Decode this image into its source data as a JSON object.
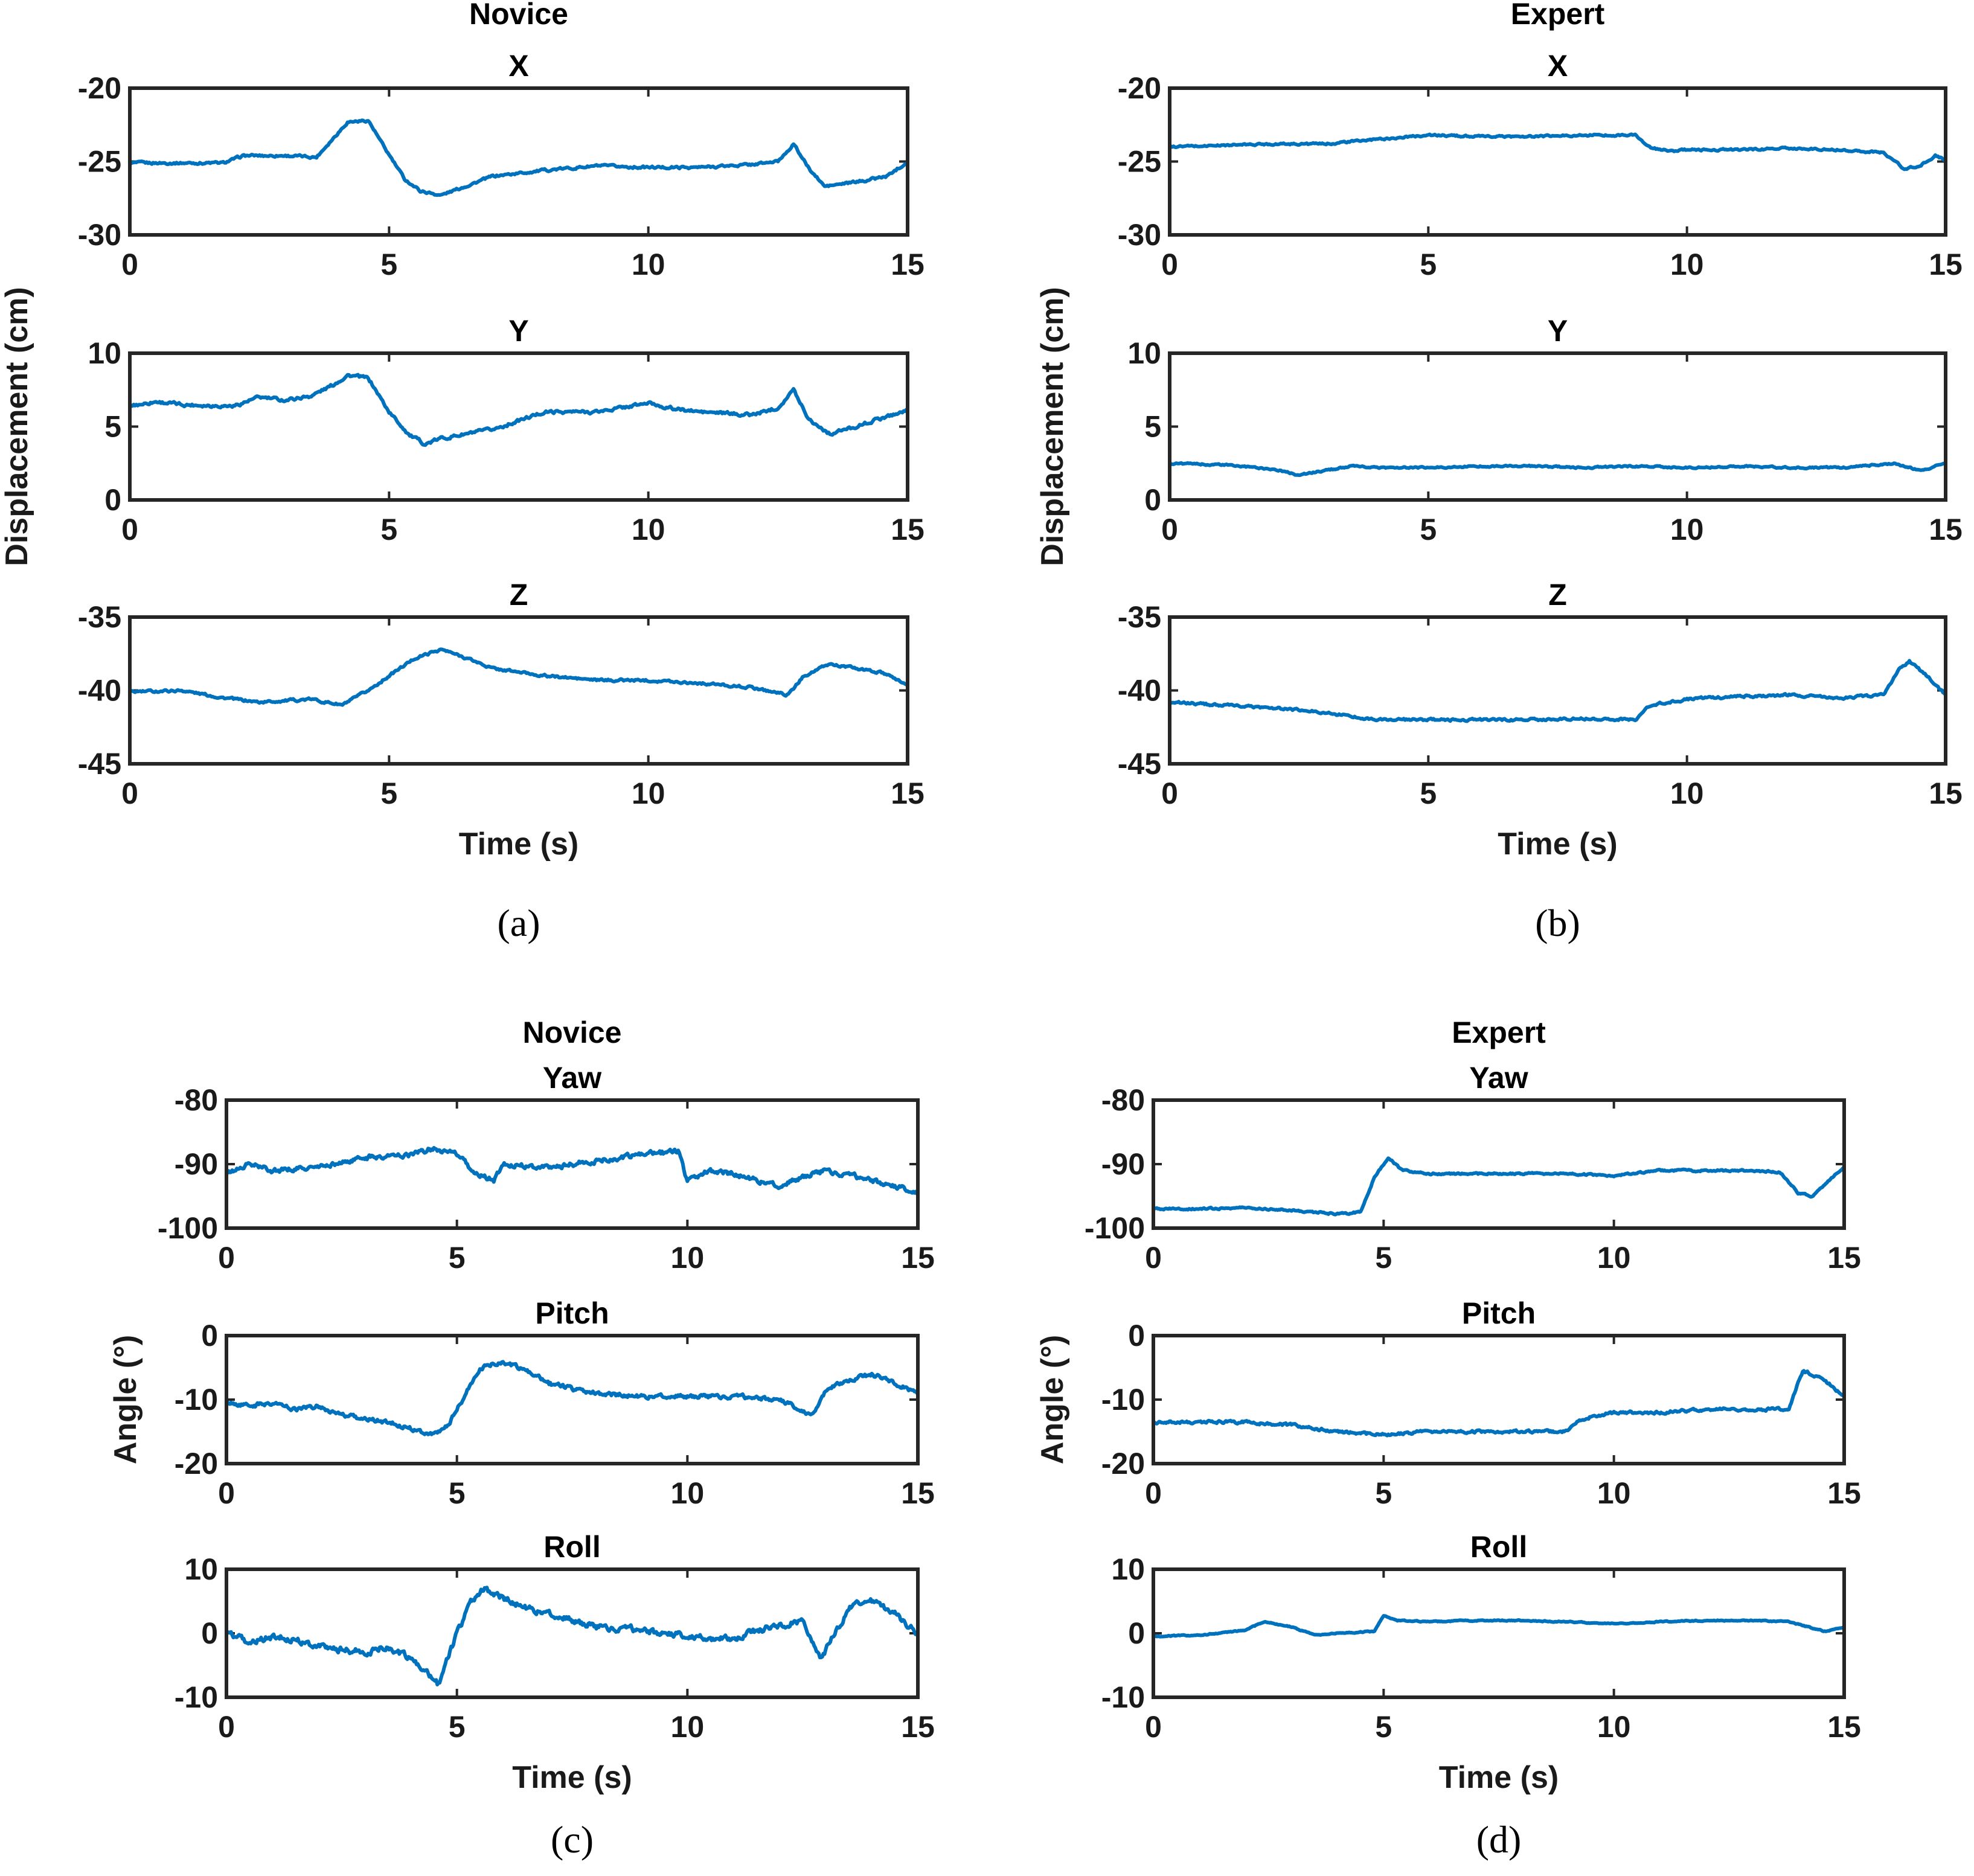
{
  "chart_data": [
    {
      "panel": "a",
      "type": "line",
      "column_title": "Novice",
      "caption": "(a)",
      "ylabel": "Displacement (cm)",
      "xlabel": "Time (s)",
      "subplots": [
        {
          "title": "X",
          "ylim": [
            -30,
            -20
          ],
          "yticks": [
            -20,
            -25,
            -30
          ],
          "xlim": [
            0,
            15
          ],
          "xticks": [
            0,
            5,
            10,
            15
          ],
          "series": [
            {
              "name": "X",
              "color": "#0072BD",
              "noise": 0.15,
              "x": [
                0,
                1,
                1.8,
                2.2,
                3,
                3.6,
                3.9,
                4.2,
                4.6,
                4.9,
                5.3,
                5.6,
                6,
                7,
                8,
                9,
                10,
                11,
                12,
                12.5,
                12.8,
                13.1,
                13.4,
                14,
                14.6,
                15
              ],
              "y": [
                -25.1,
                -25.1,
                -25.1,
                -24.6,
                -24.6,
                -24.7,
                -23.5,
                -22.3,
                -22.2,
                -24.0,
                -26.2,
                -27.0,
                -27.3,
                -26.0,
                -25.6,
                -25.3,
                -25.4,
                -25.4,
                -25.2,
                -25.0,
                -23.8,
                -25.5,
                -26.7,
                -26.4,
                -26.0,
                -25.0
              ]
            }
          ]
        },
        {
          "title": "Y",
          "ylim": [
            0,
            10
          ],
          "yticks": [
            10,
            5,
            0
          ],
          "xlim": [
            0,
            15
          ],
          "xticks": [
            0,
            5,
            10,
            15
          ],
          "series": [
            {
              "name": "Y",
              "color": "#0072BD",
              "noise": 0.2,
              "x": [
                0,
                0.5,
                1,
                2,
                2.5,
                3,
                3.5,
                3.9,
                4.2,
                4.6,
                5,
                5.4,
                5.7,
                6,
                7,
                8,
                9,
                10,
                10.5,
                11,
                12,
                12.5,
                12.8,
                13.1,
                13.5,
                14,
                14.6,
                15
              ],
              "y": [
                6.4,
                6.7,
                6.5,
                6.4,
                7.0,
                6.8,
                7.1,
                7.8,
                8.5,
                8.3,
                6.0,
                4.4,
                3.8,
                4.2,
                4.8,
                6.0,
                6.0,
                6.6,
                6.2,
                6.0,
                5.8,
                6.3,
                7.5,
                5.5,
                4.5,
                5.0,
                5.7,
                6.1
              ]
            }
          ]
        },
        {
          "title": "Z",
          "ylim": [
            -45,
            -35
          ],
          "yticks": [
            -35,
            -40,
            -45
          ],
          "xlim": [
            0,
            15
          ],
          "xticks": [
            0,
            5,
            10,
            15
          ],
          "series": [
            {
              "name": "Z",
              "color": "#0072BD",
              "noise": 0.15,
              "x": [
                0,
                1,
                1.8,
                2.5,
                3.5,
                4.1,
                4.6,
                5,
                5.5,
                6,
                6.5,
                7,
                8,
                9,
                10,
                11,
                12,
                12.7,
                13,
                13.5,
                14.5,
                15
              ],
              "y": [
                -40.1,
                -40.0,
                -40.5,
                -40.8,
                -40.6,
                -41.0,
                -40.0,
                -39.0,
                -37.8,
                -37.2,
                -37.8,
                -38.5,
                -39.0,
                -39.3,
                -39.3,
                -39.5,
                -39.8,
                -40.3,
                -39.0,
                -38.2,
                -38.8,
                -39.6
              ]
            }
          ]
        }
      ]
    },
    {
      "panel": "b",
      "type": "line",
      "column_title": "Expert",
      "caption": "(b)",
      "ylabel": "Displacement (cm)",
      "xlabel": "Time (s)",
      "subplots": [
        {
          "title": "X",
          "ylim": [
            -30,
            -20
          ],
          "yticks": [
            -20,
            -25,
            -30
          ],
          "xlim": [
            0,
            15
          ],
          "xticks": [
            0,
            5,
            10,
            15
          ],
          "series": [
            {
              "name": "X",
              "color": "#0072BD",
              "noise": 0.12,
              "x": [
                0,
                1,
                2,
                3,
                4,
                5,
                6,
                7,
                8,
                9,
                9.3,
                9.7,
                10,
                11,
                12,
                13,
                13.8,
                14.2,
                14.5,
                14.8,
                15
              ],
              "y": [
                -24.0,
                -23.9,
                -23.8,
                -23.8,
                -23.5,
                -23.2,
                -23.3,
                -23.3,
                -23.2,
                -23.2,
                -24.1,
                -24.3,
                -24.2,
                -24.2,
                -24.1,
                -24.2,
                -24.4,
                -25.5,
                -25.3,
                -24.6,
                -24.9
              ]
            }
          ]
        },
        {
          "title": "Y",
          "ylim": [
            0,
            10
          ],
          "yticks": [
            10,
            5,
            0
          ],
          "xlim": [
            0,
            15
          ],
          "xticks": [
            0,
            5,
            10,
            15
          ],
          "series": [
            {
              "name": "Y",
              "color": "#0072BD",
              "noise": 0.1,
              "x": [
                0,
                1,
                2,
                2.5,
                3,
                3.5,
                4,
                5,
                6,
                7,
                8,
                9,
                10,
                11,
                12,
                13,
                14,
                14.5,
                15
              ],
              "y": [
                2.5,
                2.4,
                2.1,
                1.7,
                2.0,
                2.3,
                2.2,
                2.2,
                2.3,
                2.3,
                2.2,
                2.3,
                2.2,
                2.3,
                2.2,
                2.2,
                2.5,
                2.0,
                2.5
              ]
            }
          ]
        },
        {
          "title": "Z",
          "ylim": [
            -45,
            -35
          ],
          "yticks": [
            -35,
            -40,
            -45
          ],
          "xlim": [
            0,
            15
          ],
          "xticks": [
            0,
            5,
            10,
            15
          ],
          "series": [
            {
              "name": "Z",
              "color": "#0072BD",
              "noise": 0.15,
              "x": [
                0,
                1,
                2,
                3,
                4,
                5,
                6,
                7,
                8,
                9,
                9.3,
                10,
                11,
                12,
                13,
                13.8,
                14.1,
                14.3,
                14.7,
                15
              ],
              "y": [
                -40.8,
                -41.0,
                -41.2,
                -41.5,
                -42.0,
                -42.0,
                -42.0,
                -42.0,
                -41.9,
                -42.0,
                -41.0,
                -40.6,
                -40.4,
                -40.3,
                -40.5,
                -40.3,
                -38.5,
                -38.0,
                -39.2,
                -40.3
              ]
            }
          ]
        }
      ]
    },
    {
      "panel": "c",
      "type": "line",
      "column_title": "Novice",
      "caption": "(c)",
      "ylabel": "Angle (°)",
      "xlabel": "Time (s)",
      "subplots": [
        {
          "title": "Yaw",
          "ylim": [
            -100,
            -80
          ],
          "yticks": [
            -80,
            -90,
            -100
          ],
          "xlim": [
            0,
            15
          ],
          "xticks": [
            0,
            5,
            10,
            15
          ],
          "series": [
            {
              "name": "Yaw",
              "color": "#0072BD",
              "noise": 0.7,
              "x": [
                0,
                0.5,
                1,
                2,
                3,
                4,
                4.5,
                5,
                5.4,
                5.8,
                6,
                7,
                8,
                9,
                9.8,
                10,
                10.5,
                11,
                12,
                12.5,
                13,
                14,
                15
              ],
              "y": [
                -91.5,
                -90.0,
                -91.0,
                -90.5,
                -89.0,
                -88.5,
                -87.5,
                -88.5,
                -91.5,
                -92.5,
                -90.0,
                -90.5,
                -89.5,
                -88.5,
                -88.0,
                -92.5,
                -91.0,
                -91.5,
                -93.5,
                -92.0,
                -91.0,
                -92.5,
                -94.5
              ]
            }
          ]
        },
        {
          "title": "Pitch",
          "ylim": [
            -20,
            0
          ],
          "yticks": [
            0,
            -10,
            -20
          ],
          "xlim": [
            0,
            15
          ],
          "xticks": [
            0,
            5,
            10,
            15
          ],
          "series": [
            {
              "name": "Pitch",
              "color": "#0072BD",
              "noise": 0.6,
              "x": [
                0,
                0.5,
                1,
                1.5,
                2,
                2.5,
                3,
                3.5,
                4,
                4.5,
                4.8,
                5.2,
                5.5,
                6,
                6.5,
                7,
                8,
                9,
                10,
                11,
                12,
                12.7,
                13,
                13.5,
                14,
                14.5,
                15
              ],
              "y": [
                -10.5,
                -11.0,
                -10.5,
                -11.5,
                -11.0,
                -12.5,
                -13.0,
                -13.5,
                -14.5,
                -15.5,
                -14.0,
                -9.0,
                -5.0,
                -4.0,
                -5.5,
                -7.5,
                -9.0,
                -9.5,
                -9.5,
                -9.5,
                -10.0,
                -12.5,
                -8.5,
                -7.0,
                -6.0,
                -7.5,
                -9.0
              ]
            }
          ]
        },
        {
          "title": "Roll",
          "ylim": [
            -10,
            10
          ],
          "yticks": [
            10,
            0,
            -10
          ],
          "xlim": [
            0,
            15
          ],
          "xticks": [
            0,
            5,
            10,
            15
          ],
          "series": [
            {
              "name": "Roll",
              "color": "#0072BD",
              "noise": 0.9,
              "x": [
                0,
                0.5,
                1,
                1.5,
                2,
                2.5,
                3,
                3.5,
                4,
                4.3,
                4.6,
                5,
                5.3,
                5.6,
                6,
                6.5,
                7,
                8,
                9,
                10,
                11,
                11.5,
                12,
                12.5,
                12.9,
                13.2,
                13.6,
                14,
                14.5,
                15
              ],
              "y": [
                0.0,
                -1.5,
                -0.5,
                -1.0,
                -2.0,
                -2.5,
                -3.0,
                -2.0,
                -4.0,
                -6.0,
                -8.0,
                0.0,
                5.0,
                7.0,
                5.5,
                4.0,
                3.0,
                1.0,
                0.5,
                -0.5,
                -1.0,
                0.5,
                1.0,
                2.0,
                -4.0,
                0.0,
                4.5,
                5.0,
                3.0,
                0.0
              ]
            }
          ]
        }
      ]
    },
    {
      "panel": "d",
      "type": "line",
      "column_title": "Expert",
      "caption": "(d)",
      "ylabel": "Angle (°)",
      "xlabel": "Time (s)",
      "subplots": [
        {
          "title": "Yaw",
          "ylim": [
            -100,
            -80
          ],
          "yticks": [
            -80,
            -90,
            -100
          ],
          "xlim": [
            0,
            15
          ],
          "xticks": [
            0,
            5,
            10,
            15
          ],
          "series": [
            {
              "name": "Yaw",
              "color": "#0072BD",
              "noise": 0.25,
              "x": [
                0,
                1,
                2,
                3,
                4,
                4.5,
                4.8,
                5.1,
                5.4,
                6,
                7,
                8,
                9,
                10,
                11,
                12,
                13,
                13.6,
                14,
                14.3,
                14.6,
                15
              ],
              "y": [
                -97.0,
                -97.0,
                -96.8,
                -97.2,
                -97.8,
                -97.5,
                -92.0,
                -89.0,
                -91.0,
                -91.5,
                -91.5,
                -91.5,
                -91.5,
                -91.8,
                -91.0,
                -91.0,
                -91.0,
                -91.2,
                -94.5,
                -95.0,
                -93.0,
                -90.5
              ]
            }
          ]
        },
        {
          "title": "Pitch",
          "ylim": [
            -20,
            0
          ],
          "yticks": [
            0,
            -10,
            -20
          ],
          "xlim": [
            0,
            15
          ],
          "xticks": [
            0,
            5,
            10,
            15
          ],
          "series": [
            {
              "name": "Pitch",
              "color": "#0072BD",
              "noise": 0.4,
              "x": [
                0,
                1,
                2,
                3,
                4,
                5,
                6,
                7,
                8,
                9,
                9.3,
                10,
                11,
                12,
                13,
                13.8,
                14.1,
                14.5,
                15
              ],
              "y": [
                -13.5,
                -13.5,
                -13.5,
                -14.0,
                -15.0,
                -15.5,
                -15.0,
                -15.0,
                -15.0,
                -15.0,
                -13.0,
                -12.0,
                -12.0,
                -11.5,
                -11.5,
                -11.5,
                -5.5,
                -6.5,
                -9.5
              ]
            }
          ]
        },
        {
          "title": "Roll",
          "ylim": [
            -10,
            10
          ],
          "yticks": [
            10,
            0,
            -10
          ],
          "xlim": [
            0,
            15
          ],
          "xticks": [
            0,
            5,
            10,
            15
          ],
          "series": [
            {
              "name": "Roll",
              "color": "#0072BD",
              "noise": 0.15,
              "x": [
                0,
                1,
                2,
                2.4,
                3,
                3.5,
                4,
                4.8,
                5,
                5.3,
                6,
                7,
                8,
                9,
                10,
                11,
                12,
                13,
                13.8,
                14.2,
                14.6,
                15
              ],
              "y": [
                -0.5,
                -0.3,
                0.5,
                1.8,
                1.0,
                -0.3,
                0.0,
                0.3,
                2.8,
                2.0,
                1.8,
                2.0,
                2.0,
                1.8,
                1.5,
                1.8,
                2.0,
                2.0,
                1.8,
                1.0,
                0.3,
                1.0
              ]
            }
          ]
        }
      ]
    }
  ]
}
